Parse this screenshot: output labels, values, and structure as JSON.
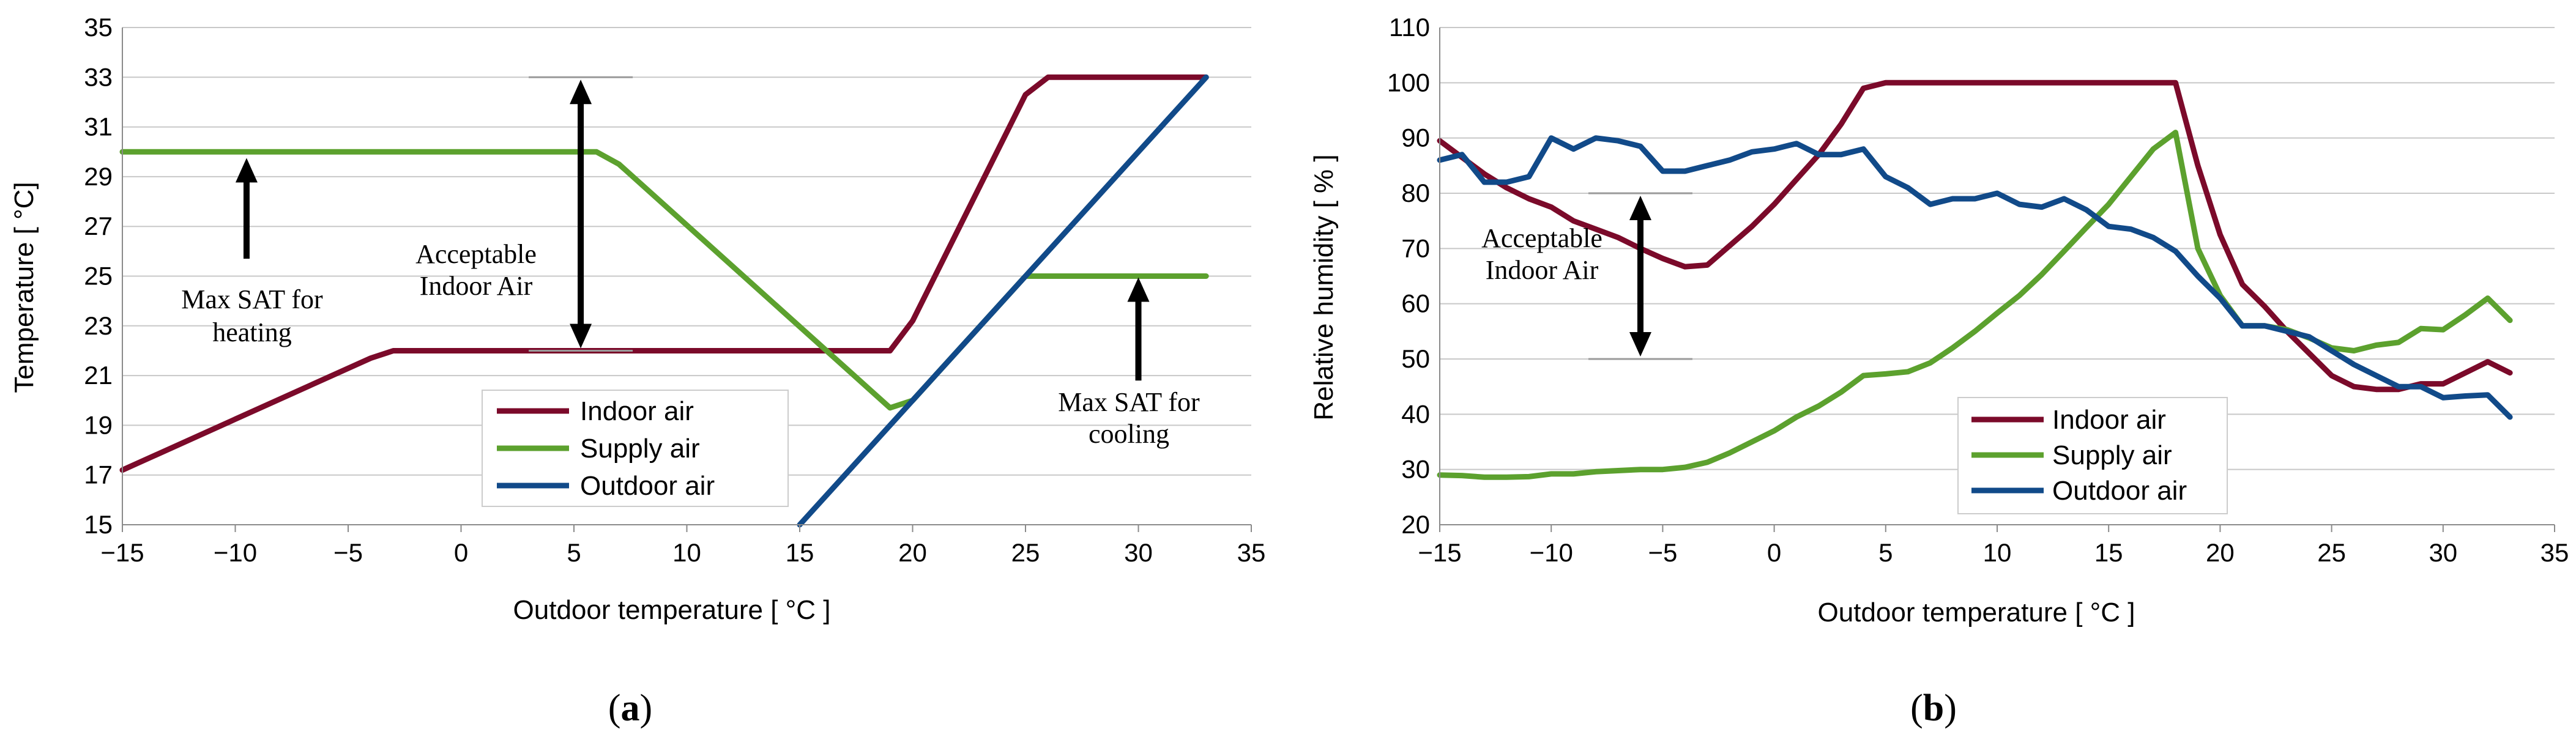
{
  "chart_data": [
    {
      "type": "line",
      "panel_label": "a",
      "xlabel": "Outdoor temperature [ °C ]",
      "ylabel": "Temperature [ °C]",
      "xlim": [
        -15,
        35
      ],
      "ylim": [
        15,
        35
      ],
      "xticks": [
        "−15",
        "−10",
        "−5",
        "0",
        "5",
        "10",
        "15",
        "20",
        "25",
        "30",
        "35"
      ],
      "yticks": [
        "15",
        "17",
        "19",
        "21",
        "23",
        "25",
        "27",
        "29",
        "31",
        "33",
        "35"
      ],
      "xtick_values": [
        -15,
        -10,
        -5,
        0,
        5,
        10,
        15,
        20,
        25,
        30,
        35
      ],
      "ytick_values": [
        15,
        17,
        19,
        21,
        23,
        25,
        27,
        29,
        31,
        33,
        35
      ],
      "grid": true,
      "legend_position": "bottom-center",
      "series": [
        {
          "name": "Indoor air",
          "color": "#7b0a2a",
          "x": [
            -15,
            -4,
            -3,
            19,
            20,
            25,
            26,
            33
          ],
          "y": [
            17.2,
            21.7,
            22,
            22,
            23.2,
            32.3,
            33,
            33
          ]
        },
        {
          "name": "Supply air",
          "color": "#5ca12e",
          "x": [
            -15,
            6,
            7,
            19,
            20,
            25,
            33
          ],
          "y": [
            30,
            30,
            29.5,
            19.7,
            20,
            25,
            25
          ]
        },
        {
          "name": "Outdoor air",
          "color": "#114a89",
          "x": [
            15,
            33
          ],
          "y": [
            15,
            33
          ]
        }
      ],
      "annotations": [
        {
          "lines": [
            "Max SAT for",
            "heating"
          ],
          "arrow_x": -9.5,
          "arrow_from": 25.7,
          "arrow_to": 29.8
        },
        {
          "lines": [
            "Acceptable",
            "Indoor Air"
          ],
          "range": [
            22,
            33
          ],
          "arrow_x": 5.3
        },
        {
          "lines": [
            "Max SAT for",
            "cooling"
          ],
          "arrow_x": 30,
          "arrow_from": 20.8,
          "arrow_to": 25
        }
      ]
    },
    {
      "type": "line",
      "panel_label": "b",
      "xlabel": "Outdoor temperature [ °C ]",
      "ylabel": "Relative humidity [ % ]",
      "xlim": [
        -15,
        35
      ],
      "ylim": [
        20,
        110
      ],
      "xticks": [
        "−15",
        "−10",
        "−5",
        "0",
        "5",
        "10",
        "15",
        "20",
        "25",
        "30",
        "35"
      ],
      "yticks": [
        "20",
        "30",
        "40",
        "50",
        "60",
        "70",
        "80",
        "90",
        "100",
        "110"
      ],
      "xtick_values": [
        -15,
        -10,
        -5,
        0,
        5,
        10,
        15,
        20,
        25,
        30,
        35
      ],
      "ytick_values": [
        20,
        30,
        40,
        50,
        60,
        70,
        80,
        90,
        100,
        110
      ],
      "grid": true,
      "legend_position": "bottom-center",
      "series": [
        {
          "name": "Indoor air",
          "color": "#7b0a2a",
          "x": [
            -15,
            -14,
            -13,
            -12,
            -11,
            -10,
            -9,
            -8,
            -7,
            -6,
            -5,
            -4,
            -3,
            -2,
            -1,
            0,
            1,
            2,
            3,
            4,
            5,
            6,
            7,
            8,
            9,
            10,
            11,
            12,
            13,
            14,
            15,
            16,
            17,
            18,
            19,
            20,
            21,
            22,
            23,
            24,
            25,
            26,
            27,
            28,
            29,
            30,
            31,
            32,
            33
          ],
          "y": [
            89.5,
            86.5,
            83.5,
            81,
            79,
            77.5,
            75,
            73.5,
            72,
            70,
            68.2,
            66.7,
            67,
            70.5,
            74,
            78,
            82.5,
            87,
            92.5,
            99,
            100,
            100,
            100,
            100,
            100,
            100,
            100,
            100,
            100,
            100,
            100,
            100,
            100,
            100,
            85,
            72.5,
            63.5,
            59.5,
            55,
            51,
            47,
            45,
            44.5,
            44.5,
            45.5,
            45.5,
            47.5,
            49.5,
            47.5
          ]
        },
        {
          "name": "Supply air",
          "color": "#5ca12e",
          "x": [
            -15,
            -14,
            -13,
            -12,
            -11,
            -10,
            -9,
            -8,
            -7,
            -6,
            -5,
            -4,
            -3,
            -2,
            -1,
            0,
            1,
            2,
            3,
            4,
            5,
            6,
            7,
            8,
            9,
            10,
            11,
            12,
            13,
            14,
            15,
            16,
            17,
            18,
            19,
            20,
            21,
            22,
            23,
            24,
            25,
            26,
            27,
            28,
            29,
            30,
            31,
            32,
            33
          ],
          "y": [
            29,
            28.9,
            28.6,
            28.6,
            28.7,
            29.2,
            29.2,
            29.6,
            29.8,
            30,
            30,
            30.4,
            31.3,
            33,
            35,
            37,
            39.5,
            41.5,
            44,
            47,
            47.3,
            47.7,
            49.3,
            52,
            55,
            58.3,
            61.5,
            65.3,
            69.5,
            73.8,
            78,
            83,
            88,
            91,
            70,
            61.5,
            56,
            56,
            55.3,
            53.8,
            52,
            51.5,
            52.5,
            53,
            55.5,
            55.3,
            58,
            61,
            57
          ]
        },
        {
          "name": "Outdoor air",
          "color": "#114a89",
          "x": [
            -15,
            -14,
            -13,
            -12,
            -11,
            -10,
            -9,
            -8,
            -7,
            -6,
            -5,
            -4,
            -3,
            -2,
            -1,
            0,
            1,
            2,
            3,
            4,
            5,
            6,
            7,
            8,
            9,
            10,
            11,
            12,
            13,
            14,
            15,
            16,
            17,
            18,
            19,
            20,
            21,
            22,
            23,
            24,
            25,
            26,
            27,
            28,
            29,
            30,
            31,
            32,
            33
          ],
          "y": [
            86,
            87,
            82,
            82,
            83,
            90,
            88,
            90,
            89.5,
            88.5,
            84,
            84,
            85,
            86,
            87.5,
            88,
            89,
            87,
            87,
            88,
            83,
            81,
            78,
            79,
            79,
            80,
            78,
            77.5,
            79,
            77,
            74,
            73.5,
            72,
            69.5,
            65,
            61,
            56,
            56,
            55,
            54,
            51.5,
            49,
            47,
            45,
            45,
            43,
            43.3,
            43.5,
            39.5
          ]
        }
      ],
      "annotations": [
        {
          "lines": [
            "Acceptable",
            "Indoor Air"
          ],
          "range": [
            50,
            80
          ],
          "arrow_x": -6
        }
      ]
    }
  ]
}
